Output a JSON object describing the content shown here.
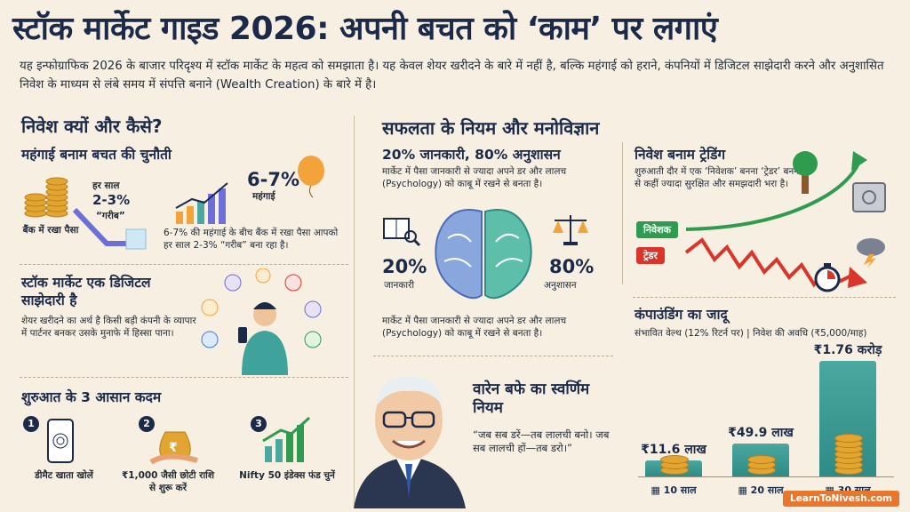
{
  "title": "स्टॉक मार्केट गाइड 2026: अपनी बचत को ‘काम’ पर लगाएं",
  "intro": "यह इन्फोग्राफिक 2026 के बाजार परिदृश्य में स्टॉक मार्केट के महत्व को समझाता है। यह केवल शेयर खरीदने के बारे में नहीं है, बल्कि महंगाई को हराने, कंपनियों में डिजिटल साझेदारी करने और अनुशासित निवेश के माध्यम से लंबे समय में संपत्ति बनाने (Wealth Creation) के बारे में है।",
  "left": {
    "heading": "निवेश क्यों और कैसे?",
    "inflation": {
      "heading": "महंगाई बनाम बचत की चुनौती",
      "bank_label": "बैंक में रखा पैसा",
      "yearly_label": "हर साल",
      "yearly_pct": "2-3%",
      "poor_label": "“गरीब”",
      "inflation_pct": "6-7%",
      "inflation_label": "महंगाई",
      "desc": "6-7% की महंगाई के बीच बैंक में रखा पैसा आपको हर साल 2-3% “गरीब” बना रहा है।"
    },
    "partnership": {
      "heading": "स्टॉक मार्केट एक डिजिटल साझेदारी है",
      "desc": "शेयर खरीदने का अर्थ है किसी बड़ी कंपनी के व्यापार में पार्टनर बनकर उसके मुनाफे में हिस्सा पाना।"
    },
    "steps": {
      "heading": "शुरुआत के 3 आसान कदम",
      "items": [
        {
          "num": "1",
          "label": "डीमैट खाता खोलें"
        },
        {
          "num": "2",
          "label": "₹1,000 जैसी छोटी राशि से शुरू करें"
        },
        {
          "num": "3",
          "label": "Nifty 50 इंडेक्स फंड चुनें"
        }
      ]
    }
  },
  "middle": {
    "heading": "सफलता के नियम और मनोविज्ञान",
    "sub": "20% जानकारी, 80% अनुशासन",
    "desc": "मार्केट में पैसा जानकारी से ज्यादा अपने डर और लालच (Psychology) को काबू में रखने से बनता है।",
    "knowledge_pct": "20%",
    "knowledge_label": "जानकारी",
    "discipline_pct": "80%",
    "discipline_label": "अनुशासन",
    "desc2": "मार्केट में पैसा जानकारी से ज्यादा अपने डर और लालच (Psychology) को काबू में रखने से बनता है।",
    "buffett": {
      "heading": "वारेन बफे का स्वर्णिम नियम",
      "quote": "“जब सब डरें—तब लालची बनो। जब सब लालची हों—तब डरो।”"
    }
  },
  "right": {
    "trading": {
      "heading": "निवेश बनाम ट्रेडिंग",
      "desc": "शुरुआती दौर में एक ‘निवेशक’ बनना ‘ट्रेडर’ बनने से कहीं ज्यादा सुरक्षित और समझदारी भरा है।",
      "investor_label": "निवेशक",
      "trader_label": "ट्रेडर",
      "investor_color": "#2e9b4e",
      "trader_color": "#d9352b"
    },
    "compounding": {
      "heading": "कंपाउंडिंग का जादू",
      "sub": "संभावित वेल्थ (12% रिटर्न पर) | निवेश की अवधि (₹5,000/माह)"
    }
  },
  "chart_data": {
    "type": "bar",
    "categories": [
      "10 साल",
      "20 साल",
      "30 साल"
    ],
    "values": [
      11.6,
      49.9,
      176
    ],
    "labels": [
      "₹11.6 लाख",
      "₹49.9 लाख",
      "₹1.76 करोड़"
    ]
  },
  "brand": "LearnToNivesh.com"
}
